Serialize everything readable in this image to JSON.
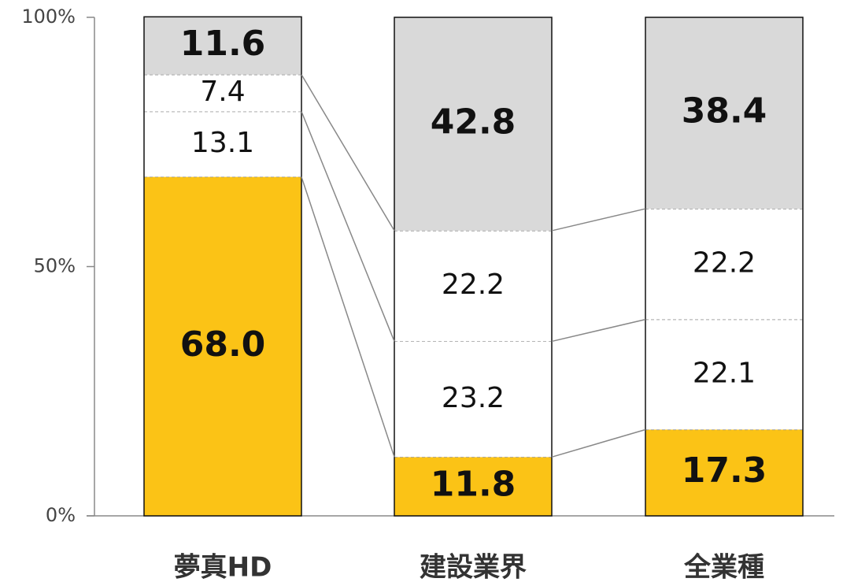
{
  "chart_data": {
    "type": "stacked_bar",
    "categories": [
      "夢真HD",
      "建設業界",
      "全業種"
    ],
    "series": [
      {
        "color": "#fbc316",
        "values": [
          68,
          11.8,
          17.3
        ],
        "value_labels": [
          "68.0",
          "11.8",
          "17.3"
        ]
      },
      {
        "color": "#ffffff",
        "values": [
          13.1,
          23.2,
          22.1
        ],
        "value_labels": [
          "13.1",
          "23.2",
          "22.1"
        ]
      },
      {
        "color": "#ffffff",
        "values": [
          7.4,
          22.2,
          22.2
        ],
        "value_labels": [
          "7.4",
          "22.2",
          "22.2"
        ]
      },
      {
        "color": "#d9d9d9",
        "values": [
          11.6,
          42.8,
          38.4
        ],
        "value_labels": [
          "11.6",
          "42.8",
          "38.4"
        ]
      }
    ],
    "ylim": [
      0,
      100
    ],
    "yticks": [
      {
        "value": 0,
        "label": "0%"
      },
      {
        "value": 50,
        "label": "50%"
      },
      {
        "value": 100,
        "label": "100%"
      }
    ]
  }
}
